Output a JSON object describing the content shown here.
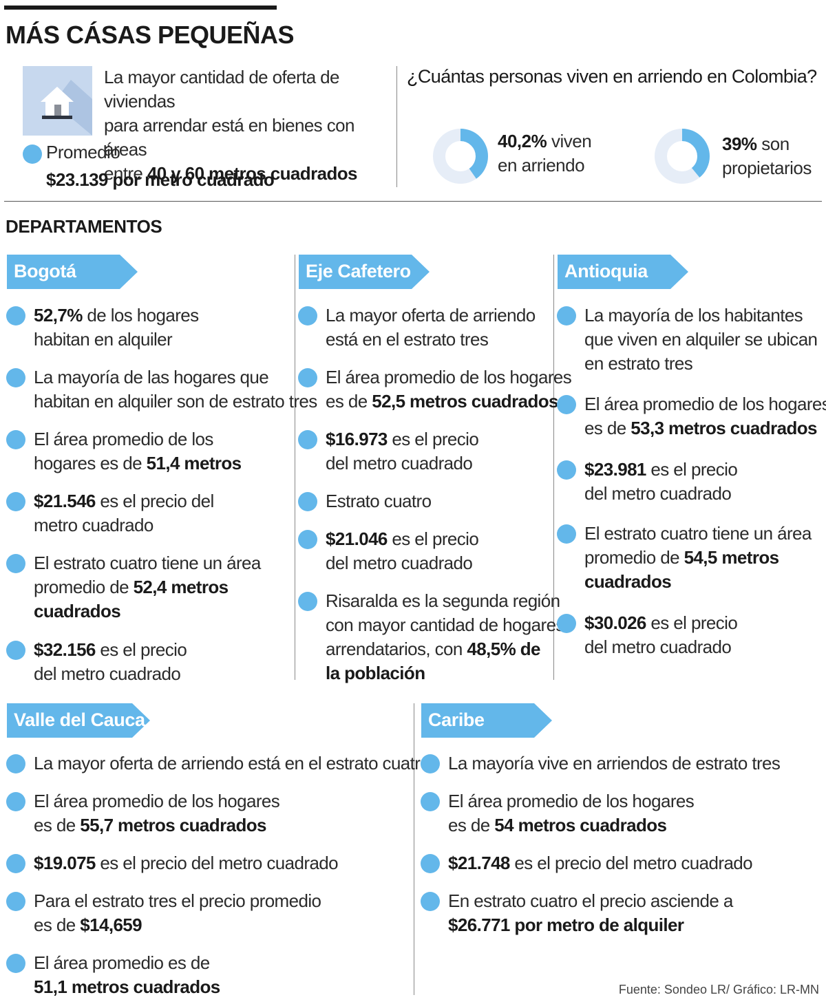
{
  "title": "MÁS CÁSAS PEQUEÑAS",
  "intro": {
    "line1": "La mayor cantidad de oferta de viviendas",
    "line2": "para arrendar está en bienes con áreas",
    "line3_pre": "entre ",
    "line3_bold": "40 y 60 metros cuadrados",
    "average_label": "Promedio",
    "average_value": "$23.139 por metro cuadrado"
  },
  "question": "¿Cuántas personas viven en arriendo en Colombia?",
  "stats": [
    {
      "value": "40,2%",
      "percent": 40.2,
      "text1": " viven",
      "text2": "en arriendo"
    },
    {
      "value": "39%",
      "percent": 39,
      "text1": " son",
      "text2": "propietarios"
    }
  ],
  "section_title": "DEPARTAMENTOS",
  "regions": {
    "bogota": {
      "name": "Bogotá",
      "items": [
        {
          "l1": [
            "b:52,7%",
            " de los hogares"
          ],
          "l2": [
            "habitan en alquiler"
          ]
        },
        {
          "l1": [
            "La mayoría de las hogares que"
          ],
          "l2": [
            "habitan en alquiler son de estrato tres"
          ]
        },
        {
          "l1": [
            "El área promedio de los"
          ],
          "l2": [
            "hogares es de ",
            "b:51,4 metros"
          ]
        },
        {
          "l1": [
            "b:$21.546",
            " es el precio del"
          ],
          "l2": [
            "metro cuadrado"
          ]
        },
        {
          "l1": [
            "El estrato cuatro tiene un área"
          ],
          "l2": [
            "promedio de ",
            "b:52,4 metros"
          ],
          "l3": [
            "b:cuadrados"
          ]
        },
        {
          "l1": [
            "b:$32.156",
            " es el precio"
          ],
          "l2": [
            "del metro cuadrado"
          ]
        }
      ]
    },
    "eje": {
      "name": "Eje Cafetero",
      "items": [
        {
          "l1": [
            "La mayor oferta de arriendo"
          ],
          "l2": [
            "está en el estrato tres"
          ]
        },
        {
          "l1": [
            "El área promedio de los hogares"
          ],
          "l2": [
            "es de ",
            "b:52,5 metros cuadrados"
          ]
        },
        {
          "l1": [
            "b:$16.973",
            " es el precio"
          ],
          "l2": [
            "del metro cuadrado"
          ]
        },
        {
          "l1": [
            "Estrato cuatro"
          ]
        },
        {
          "l1": [
            "b:$21.046",
            " es el precio"
          ],
          "l2": [
            "del metro cuadrado"
          ]
        },
        {
          "l1": [
            "Risaralda es la segunda región"
          ],
          "l2": [
            "con mayor cantidad de hogares"
          ],
          "l3": [
            "arrendatarios, con ",
            "b:48,5% de"
          ],
          "l4": [
            "b:la población"
          ]
        }
      ]
    },
    "antioquia": {
      "name": "Antioquia",
      "items": [
        {
          "l1": [
            "La mayoría de los habitantes"
          ],
          "l2": [
            "que viven en alquiler se ubican"
          ],
          "l3": [
            "en estrato tres"
          ]
        },
        {
          "l1": [
            "El área promedio de los hogares"
          ],
          "l2": [
            "es de ",
            "b:53,3 metros cuadrados"
          ]
        },
        {
          "l1": [
            "b:$23.981",
            " es el precio"
          ],
          "l2": [
            "del metro cuadrado"
          ]
        },
        {
          "l1": [
            "El estrato cuatro tiene un área"
          ],
          "l2": [
            "promedio de ",
            "b:54,5 metros"
          ],
          "l3": [
            "b:cuadrados"
          ]
        },
        {
          "l1": [
            "b:$30.026",
            " es el precio"
          ],
          "l2": [
            "del metro cuadrado"
          ]
        }
      ]
    },
    "valle": {
      "name": "Valle del Cauca",
      "items": [
        {
          "l1": [
            "La mayor oferta de arriendo está en el estrato cuatro"
          ]
        },
        {
          "l1": [
            "El área promedio de los hogares"
          ],
          "l2": [
            "es de ",
            "b:55,7 metros cuadrados"
          ]
        },
        {
          "l1": [
            "b:$19.075",
            " es el precio del metro cuadrado"
          ]
        },
        {
          "l1": [
            "Para el estrato tres el precio promedio"
          ],
          "l2": [
            "es de ",
            "b:$14,659"
          ]
        },
        {
          "l1": [
            "El área promedio es de"
          ],
          "l2": [
            "b:51,1 metros cuadrados"
          ]
        }
      ]
    },
    "caribe": {
      "name": "Caribe",
      "items": [
        {
          "l1": [
            "La mayoría vive en arriendos de estrato tres"
          ]
        },
        {
          "l1": [
            "El área promedio de los hogares"
          ],
          "l2": [
            "es de ",
            "b:54 metros cuadrados"
          ]
        },
        {
          "l1": [
            "b:$21.748",
            " es el precio del metro cuadrado"
          ]
        },
        {
          "l1": [
            "En estrato cuatro el precio asciende a"
          ],
          "l2": [
            "b:$26.771 por metro de alquiler"
          ]
        }
      ]
    }
  },
  "source": "Fuente: Sondeo LR/ Gráfico: LR-MN",
  "colors": {
    "accent": "#63b7ea",
    "tag": "#63b7ea",
    "donut_track": "#e6edf7",
    "house_bg": "#c7d8ee"
  }
}
